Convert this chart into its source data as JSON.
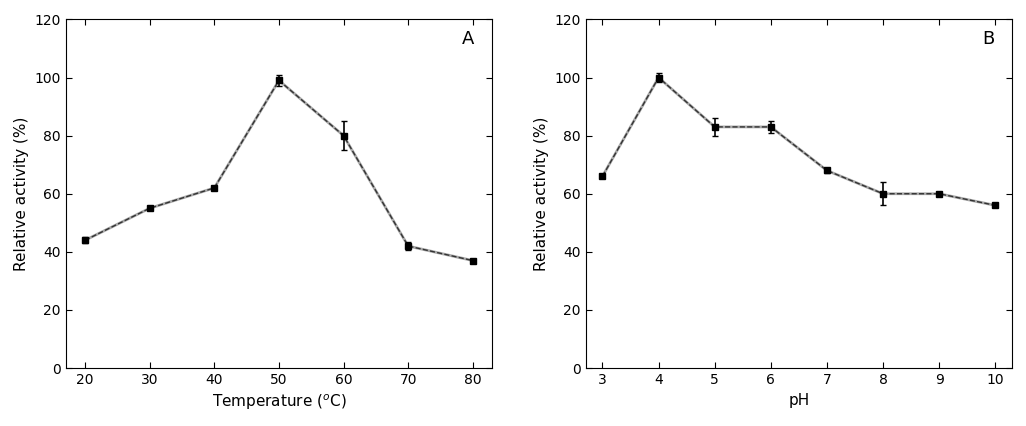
{
  "panel_A": {
    "x": [
      20,
      30,
      40,
      50,
      60,
      70,
      80
    ],
    "y": [
      44,
      55,
      62,
      99,
      80,
      42,
      37
    ],
    "yerr": [
      1,
      0,
      0,
      2,
      5,
      1.5,
      0
    ],
    "xlabel": "Temperature ($^{\\circ}$C)",
    "ylabel": "Relative activity (%)",
    "xlim": [
      17,
      83
    ],
    "ylim": [
      0,
      120
    ],
    "xticks": [
      20,
      30,
      40,
      50,
      60,
      70,
      80
    ],
    "yticks": [
      0,
      20,
      40,
      60,
      80,
      100,
      120
    ],
    "label": "A"
  },
  "panel_B": {
    "x": [
      3,
      4,
      5,
      6,
      7,
      8,
      9,
      10
    ],
    "y": [
      66,
      100,
      83,
      83,
      68,
      60,
      60,
      56
    ],
    "yerr": [
      0,
      1.5,
      3,
      2,
      1,
      4,
      0,
      0
    ],
    "xlabel": "pH",
    "ylabel": "Relative activity (%)",
    "xlim": [
      2.7,
      10.3
    ],
    "ylim": [
      0,
      120
    ],
    "xticks": [
      3,
      4,
      5,
      6,
      7,
      8,
      9,
      10
    ],
    "yticks": [
      0,
      20,
      40,
      60,
      80,
      100,
      120
    ],
    "label": "B"
  },
  "gray_line_color": "#aaaaaa",
  "dark_line_color": "#333333",
  "marker_color": "black",
  "marker": "s",
  "markersize": 5,
  "linewidth_gray": 2.0,
  "linewidth_dark": 1.0,
  "capsize": 2.5,
  "elinewidth": 1.2,
  "label_font_size": 11,
  "tick_font_size": 10,
  "panel_label_font_size": 13
}
